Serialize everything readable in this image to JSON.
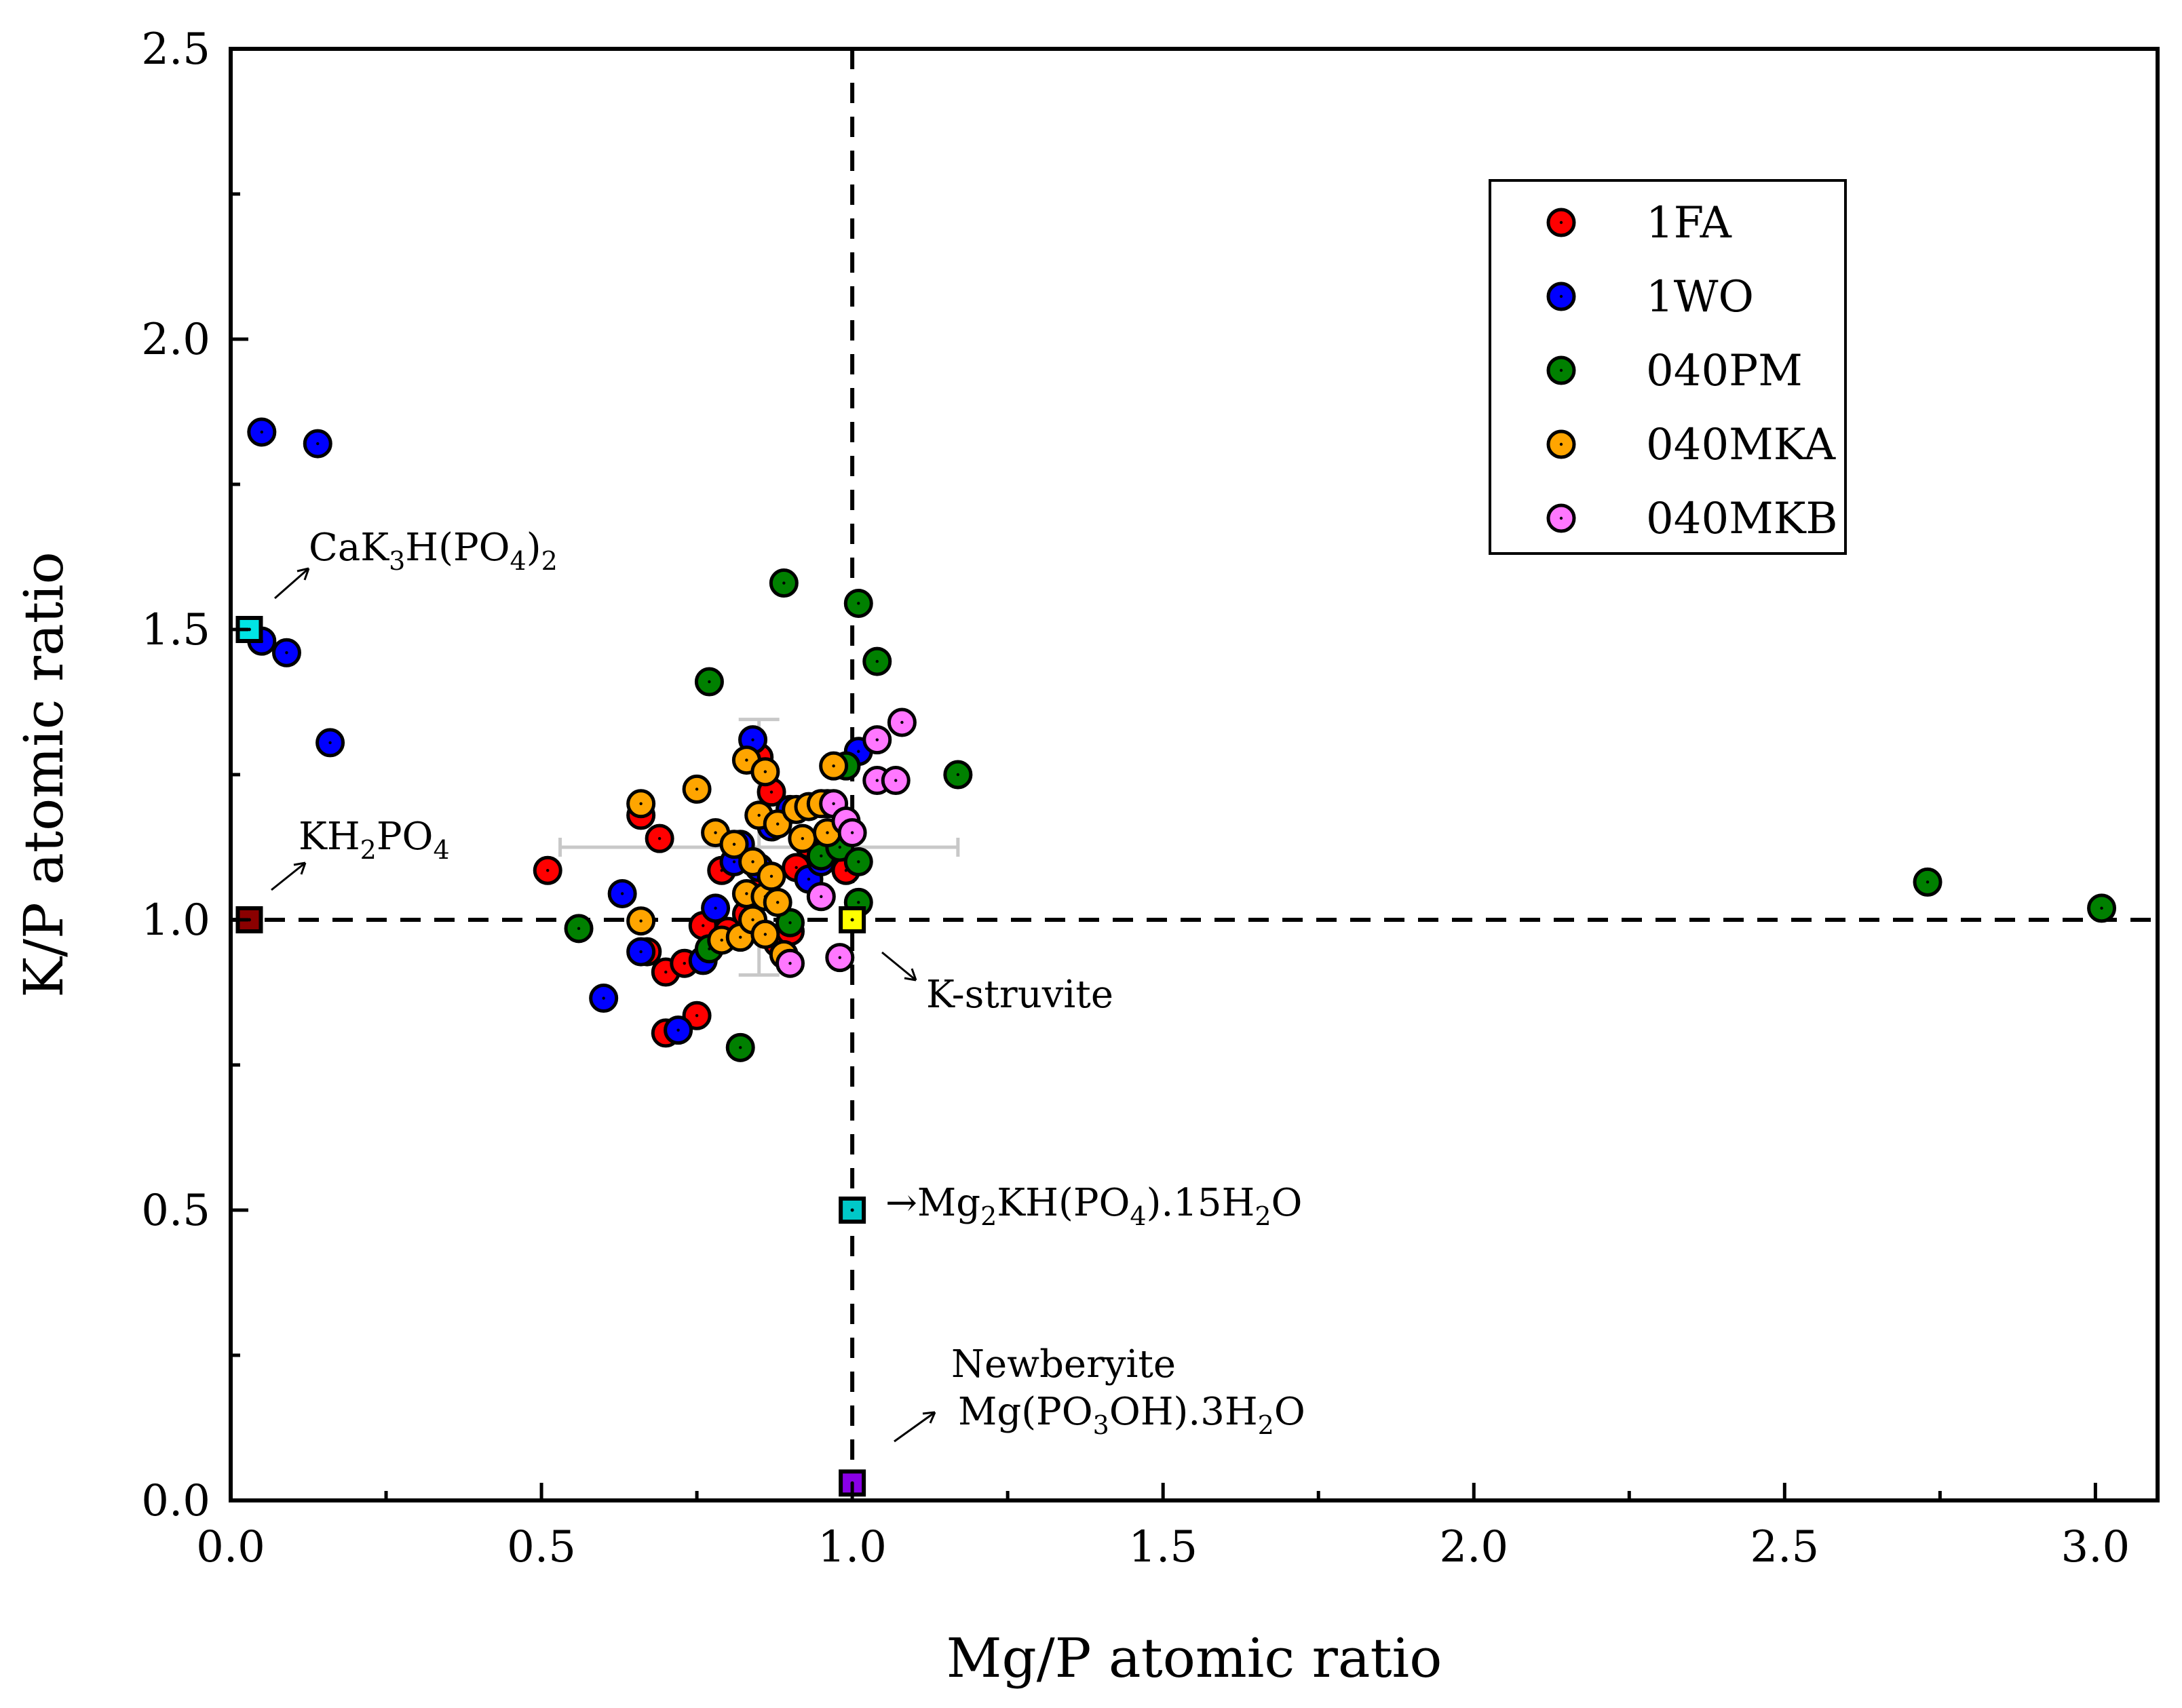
{
  "chart_data": {
    "type": "scatter",
    "xlabel": "Mg/P atomic ratio",
    "ylabel": "K/P atomic ratio",
    "xlim": [
      0,
      3.1
    ],
    "ylim": [
      0,
      2.5
    ],
    "x_ticks": [
      "0.0",
      "0.5",
      "1.0",
      "1.5",
      "2.0",
      "2.5",
      "3.0"
    ],
    "y_ticks": [
      "0.0",
      "0.5",
      "1.0",
      "1.5",
      "2.0",
      "2.5"
    ],
    "reference_lines": [
      {
        "orientation": "vertical",
        "value": 1.0,
        "style": "dashed"
      },
      {
        "orientation": "horizontal",
        "value": 1.0,
        "style": "dashed"
      }
    ],
    "legend_position": "top-right",
    "series": [
      {
        "name": "1FA",
        "color": "#ff0000",
        "points": [
          [
            0.51,
            1.085
          ],
          [
            0.66,
            1.18
          ],
          [
            0.69,
            1.14
          ],
          [
            0.67,
            0.945
          ],
          [
            0.7,
            0.91
          ],
          [
            0.7,
            0.805
          ],
          [
            0.73,
            0.925
          ],
          [
            0.75,
            0.835
          ],
          [
            0.76,
            0.99
          ],
          [
            0.79,
            1.085
          ],
          [
            0.8,
            0.98
          ],
          [
            0.82,
            1.12
          ],
          [
            0.83,
            1.01
          ],
          [
            0.85,
            1.28
          ],
          [
            0.86,
            1.065
          ],
          [
            0.87,
            1.22
          ],
          [
            0.88,
            0.96
          ],
          [
            0.9,
            0.98
          ],
          [
            0.91,
            1.09
          ],
          [
            0.93,
            1.13
          ],
          [
            0.96,
            1.2
          ],
          [
            0.99,
            1.085
          ]
        ]
      },
      {
        "name": "1WO",
        "color": "#0000ff",
        "points": [
          [
            0.05,
            1.84
          ],
          [
            0.14,
            1.82
          ],
          [
            0.05,
            1.48
          ],
          [
            0.09,
            1.46
          ],
          [
            0.16,
            1.305
          ],
          [
            0.63,
            1.045
          ],
          [
            0.66,
            0.945
          ],
          [
            0.6,
            0.865
          ],
          [
            0.72,
            0.81
          ],
          [
            0.76,
            0.93
          ],
          [
            0.78,
            1.02
          ],
          [
            0.81,
            1.1
          ],
          [
            0.82,
            1.13
          ],
          [
            0.84,
            1.31
          ],
          [
            0.85,
            1.09
          ],
          [
            0.87,
            1.16
          ],
          [
            0.9,
            1.19
          ],
          [
            0.93,
            1.07
          ],
          [
            0.95,
            1.1
          ],
          [
            1.01,
            1.29
          ]
        ]
      },
      {
        "name": "040PM",
        "color": "#008000",
        "points": [
          [
            0.56,
            0.985
          ],
          [
            0.77,
            1.41
          ],
          [
            0.77,
            0.95
          ],
          [
            0.82,
            0.78
          ],
          [
            0.89,
            1.58
          ],
          [
            0.9,
            0.995
          ],
          [
            0.95,
            1.11
          ],
          [
            0.98,
            1.125
          ],
          [
            0.99,
            1.265
          ],
          [
            1.01,
            1.545
          ],
          [
            1.01,
            1.1
          ],
          [
            1.01,
            1.03
          ],
          [
            1.04,
            1.445
          ],
          [
            1.17,
            1.25
          ],
          [
            2.73,
            1.065
          ],
          [
            3.01,
            1.02
          ]
        ]
      },
      {
        "name": "040MKA",
        "color": "#ffa500",
        "points": [
          [
            0.66,
            1.2
          ],
          [
            0.66,
            0.998
          ],
          [
            0.75,
            1.225
          ],
          [
            0.78,
            1.15
          ],
          [
            0.79,
            0.965
          ],
          [
            0.81,
            1.13
          ],
          [
            0.82,
            0.97
          ],
          [
            0.83,
            1.275
          ],
          [
            0.83,
            1.045
          ],
          [
            0.84,
            1.1
          ],
          [
            0.84,
            1.0
          ],
          [
            0.85,
            1.18
          ],
          [
            0.86,
            1.255
          ],
          [
            0.86,
            1.04
          ],
          [
            0.87,
            1.075
          ],
          [
            0.88,
            1.165
          ],
          [
            0.88,
            1.03
          ],
          [
            0.89,
            0.94
          ],
          [
            0.91,
            1.19
          ],
          [
            0.92,
            1.14
          ],
          [
            0.93,
            1.195
          ],
          [
            0.95,
            1.2
          ],
          [
            0.96,
            1.15
          ],
          [
            0.97,
            1.265
          ],
          [
            0.86,
            0.975
          ]
        ]
      },
      {
        "name": "040MKB",
        "color": "#ff77ff",
        "points": [
          [
            0.9,
            0.925
          ],
          [
            0.95,
            1.04
          ],
          [
            0.97,
            1.2
          ],
          [
            0.98,
            0.935
          ],
          [
            0.99,
            1.17
          ],
          [
            1.0,
            1.15
          ],
          [
            1.04,
            1.31
          ],
          [
            1.04,
            1.24
          ],
          [
            1.07,
            1.24
          ],
          [
            1.08,
            1.34
          ]
        ]
      }
    ],
    "error_bars": {
      "x": 0.85,
      "y": 1.125,
      "x_err": 0.32,
      "y_err": 0.22,
      "color": "#c8c8c8"
    },
    "reference_compounds": [
      {
        "x": 0.03,
        "y": 1.5,
        "color": "#00e5e5"
      },
      {
        "x": 0.03,
        "y": 1.0,
        "color": "#8b0000"
      },
      {
        "x": 1.0,
        "y": 1.0,
        "color": "#ffff00"
      },
      {
        "x": 1.0,
        "y": 0.5,
        "color": "#00c8c8"
      },
      {
        "x": 1.0,
        "y": 0.03,
        "color": "#8a00e6"
      }
    ]
  },
  "annotations": {
    "cak3h": {
      "base": "CaK",
      "s1": "3",
      "mid": "H(PO",
      "s2": "4",
      "tail": ")",
      "s3": "2"
    },
    "kh2po4": {
      "base": "KH",
      "s1": "2",
      "mid": "PO",
      "s2": "4"
    },
    "kstruvite": "K-struvite",
    "mg2kh": {
      "arrow": "→",
      "base": "Mg",
      "s1": "2",
      "mid": "KH(PO",
      "s2": "4",
      "mid2": ").15H",
      "s3": "2",
      "tail": "O"
    },
    "newberyite_name": "Newberyite",
    "newberyite_formula": {
      "base": "Mg(PO",
      "s1": "3",
      "mid": "OH).3H",
      "s2": "2",
      "tail": "O"
    }
  }
}
